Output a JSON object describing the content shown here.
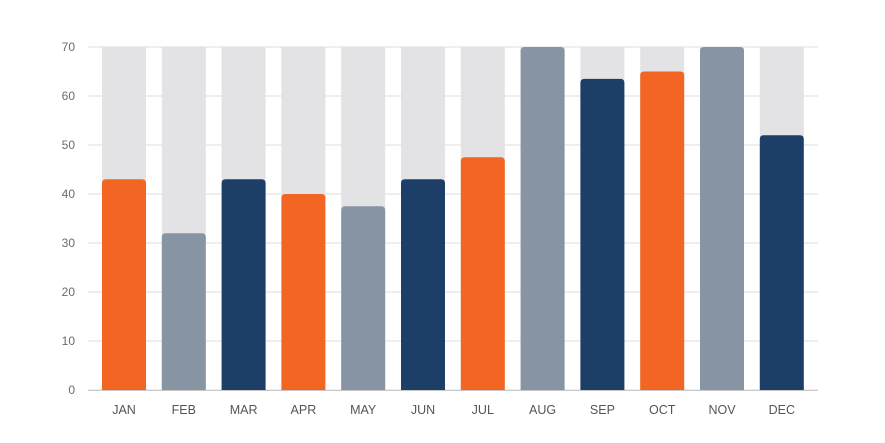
{
  "chart_data": {
    "type": "bar",
    "title": "",
    "xlabel": "",
    "ylabel": "",
    "ylim": [
      0,
      70
    ],
    "y_ticks": [
      "0",
      "10",
      "20",
      "30",
      "40",
      "50",
      "60",
      "70"
    ],
    "grid": true,
    "background_bars": true,
    "categories": [
      "JAN",
      "FEB",
      "MAR",
      "APR",
      "MAY",
      "JUN",
      "JUL",
      "AUG",
      "SEP",
      "OCT",
      "NOV",
      "DEC"
    ],
    "values": [
      43,
      32,
      43,
      40,
      37.5,
      43,
      47.5,
      70,
      63.5,
      65,
      70,
      52
    ],
    "bar_colors": [
      "orange",
      "gray",
      "navy",
      "orange",
      "gray",
      "navy",
      "orange",
      "gray",
      "navy",
      "orange",
      "gray",
      "navy"
    ]
  },
  "colors": {
    "orange": "#f26522",
    "gray": "#8794a3",
    "navy": "#1d3e66",
    "track": "#e3e3e6",
    "grid": "#dcdcdc",
    "axis": "#c8c8c8"
  }
}
